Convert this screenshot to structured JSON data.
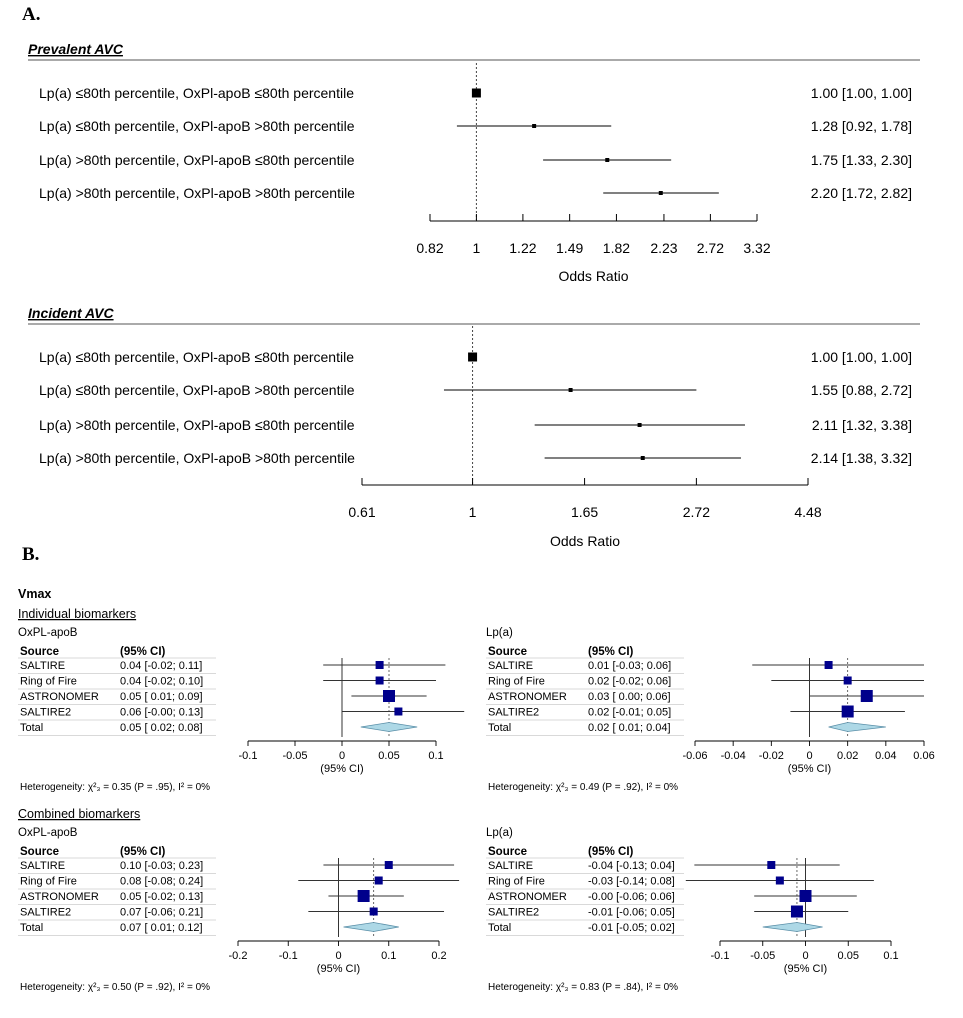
{
  "panel_a": {
    "label": "A.",
    "forest": [
      {
        "title": "Prevalent AVC",
        "xlabel": "Odds Ratio",
        "ticks": [
          "0.82",
          "1",
          "1.22",
          "1.49",
          "1.82",
          "2.23",
          "2.72",
          "3.32"
        ],
        "rows": [
          {
            "label": "Lp(a) ≤80th percentile, OxPl-apoB ≤80th percentile",
            "est": 1.0,
            "lo": 1.0,
            "hi": 1.0,
            "text": "1.00 [1.00, 1.00]"
          },
          {
            "label": "Lp(a) ≤80th percentile, OxPl-apoB >80th percentile",
            "est": 1.28,
            "lo": 0.92,
            "hi": 1.78,
            "text": "1.28 [0.92, 1.78]"
          },
          {
            "label": "Lp(a) >80th percentile, OxPl-apoB ≤80th percentile",
            "est": 1.75,
            "lo": 1.33,
            "hi": 2.3,
            "text": "1.75 [1.33, 2.30]"
          },
          {
            "label": "Lp(a) >80th percentile, OxPl-apoB >80th percentile",
            "est": 2.2,
            "lo": 1.72,
            "hi": 2.82,
            "text": "2.20 [1.72, 2.82]"
          }
        ]
      },
      {
        "title": "Incident AVC",
        "xlabel": "Odds Ratio",
        "ticks": [
          "0.61",
          "1",
          "1.65",
          "2.72",
          "4.48"
        ],
        "rows": [
          {
            "label": "Lp(a) ≤80th percentile, OxPl-apoB ≤80th percentile",
            "est": 1.0,
            "lo": 1.0,
            "hi": 1.0,
            "text": "1.00 [1.00, 1.00]"
          },
          {
            "label": "Lp(a) ≤80th percentile, OxPl-apoB >80th percentile",
            "est": 1.55,
            "lo": 0.88,
            "hi": 2.72,
            "text": "1.55 [0.88, 2.72]"
          },
          {
            "label": "Lp(a) >80th percentile, OxPl-apoB ≤80th percentile",
            "est": 2.11,
            "lo": 1.32,
            "hi": 3.38,
            "text": "2.11 [1.32, 3.38]"
          },
          {
            "label": "Lp(a) >80th percentile, OxPl-apoB >80th percentile",
            "est": 2.14,
            "lo": 1.38,
            "hi": 3.32,
            "text": "2.14 [1.38, 3.32]"
          }
        ]
      }
    ]
  },
  "panel_b": {
    "label": "B.",
    "heading": "Vmax",
    "sections": [
      {
        "title": "Individual biomarkers",
        "plots": [
          {
            "subtitle": "OxPL-apoB",
            "col_source": "Source",
            "col_ci": "(95% CI)",
            "ticks": [
              "-0.1",
              "-0.05",
              "0",
              "0.05",
              "0.1"
            ],
            "axis_label": "(95% CI)",
            "heterogeneity": "Heterogeneity: χ²₃ = 0.35 (P = .95), I² = 0%",
            "rows": [
              {
                "source": "SALTIRE",
                "ci": "0.04 [-0.02; 0.11]",
                "est": 0.04,
                "lo": -0.02,
                "hi": 0.11,
                "size": "small"
              },
              {
                "source": "Ring of Fire",
                "ci": "0.04 [-0.02; 0.10]",
                "est": 0.04,
                "lo": -0.02,
                "hi": 0.1,
                "size": "small"
              },
              {
                "source": "ASTRONOMER",
                "ci": "0.05 [ 0.01; 0.09]",
                "est": 0.05,
                "lo": 0.01,
                "hi": 0.09,
                "size": "large"
              },
              {
                "source": "SALTIRE2",
                "ci": "0.06 [-0.00; 0.13]",
                "est": 0.06,
                "lo": -0.0,
                "hi": 0.13,
                "size": "small"
              }
            ],
            "total": {
              "source": "Total",
              "ci": "0.05 [ 0.02; 0.08]",
              "est": 0.05,
              "lo": 0.02,
              "hi": 0.08
            }
          },
          {
            "subtitle": "Lp(a)",
            "col_source": "Source",
            "col_ci": "(95% CI)",
            "ticks": [
              "-0.06",
              "-0.04",
              "-0.02",
              "0",
              "0.02",
              "0.04",
              "0.06"
            ],
            "axis_label": "(95% CI)",
            "heterogeneity": "Heterogeneity: χ²₃ = 0.49 (P = .92), I² = 0%",
            "rows": [
              {
                "source": "SALTIRE",
                "ci": "0.01 [-0.03; 0.06]",
                "est": 0.01,
                "lo": -0.03,
                "hi": 0.06,
                "size": "small"
              },
              {
                "source": "Ring of Fire",
                "ci": "0.02 [-0.02; 0.06]",
                "est": 0.02,
                "lo": -0.02,
                "hi": 0.06,
                "size": "small"
              },
              {
                "source": "ASTRONOMER",
                "ci": "0.03 [ 0.00; 0.06]",
                "est": 0.03,
                "lo": 0.0,
                "hi": 0.06,
                "size": "large"
              },
              {
                "source": "SALTIRE2",
                "ci": "0.02 [-0.01; 0.05]",
                "est": 0.02,
                "lo": -0.01,
                "hi": 0.05,
                "size": "large"
              }
            ],
            "total": {
              "source": "Total",
              "ci": "0.02 [ 0.01; 0.04]",
              "est": 0.02,
              "lo": 0.01,
              "hi": 0.04
            }
          }
        ]
      },
      {
        "title": "Combined biomarkers",
        "plots": [
          {
            "subtitle": "OxPL-apoB",
            "col_source": "Source",
            "col_ci": "(95% CI)",
            "ticks": [
              "-0.2",
              "-0.1",
              "0",
              "0.1",
              "0.2"
            ],
            "axis_label": "(95% CI)",
            "heterogeneity": "Heterogeneity: χ²₃ = 0.50 (P = .92), I² = 0%",
            "rows": [
              {
                "source": "SALTIRE",
                "ci": "0.10 [-0.03; 0.23]",
                "est": 0.1,
                "lo": -0.03,
                "hi": 0.23,
                "size": "small"
              },
              {
                "source": "Ring of Fire",
                "ci": "0.08 [-0.08; 0.24]",
                "est": 0.08,
                "lo": -0.08,
                "hi": 0.24,
                "size": "small"
              },
              {
                "source": "ASTRONOMER",
                "ci": "0.05 [-0.02; 0.13]",
                "est": 0.05,
                "lo": -0.02,
                "hi": 0.13,
                "size": "large"
              },
              {
                "source": "SALTIRE2",
                "ci": "0.07 [-0.06; 0.21]",
                "est": 0.07,
                "lo": -0.06,
                "hi": 0.21,
                "size": "small"
              }
            ],
            "total": {
              "source": "Total",
              "ci": "0.07 [ 0.01; 0.12]",
              "est": 0.07,
              "lo": 0.01,
              "hi": 0.12
            }
          },
          {
            "subtitle": "Lp(a)",
            "col_source": "Source",
            "col_ci": "(95% CI)",
            "ticks": [
              "-0.1",
              "-0.05",
              "0",
              "0.05",
              "0.1"
            ],
            "axis_label": "(95% CI)",
            "heterogeneity": "Heterogeneity: χ²₃ = 0.83 (P = .84), I² = 0%",
            "rows": [
              {
                "source": "SALTIRE",
                "ci": "-0.04 [-0.13; 0.04]",
                "est": -0.04,
                "lo": -0.13,
                "hi": 0.04,
                "size": "small"
              },
              {
                "source": "Ring of Fire",
                "ci": "-0.03 [-0.14; 0.08]",
                "est": -0.03,
                "lo": -0.14,
                "hi": 0.08,
                "size": "small"
              },
              {
                "source": "ASTRONOMER",
                "ci": "-0.00 [-0.06; 0.06]",
                "est": -0.0,
                "lo": -0.06,
                "hi": 0.06,
                "size": "large"
              },
              {
                "source": "SALTIRE2",
                "ci": "-0.01 [-0.06; 0.05]",
                "est": -0.01,
                "lo": -0.06,
                "hi": 0.05,
                "size": "large"
              }
            ],
            "total": {
              "source": "Total",
              "ci": "-0.01 [-0.05; 0.02]",
              "est": -0.01,
              "lo": -0.05,
              "hi": 0.02
            }
          }
        ]
      }
    ]
  },
  "colors": {
    "marker_b": "#00008B",
    "diamond_b": "#ADD8E6",
    "ink": "#000000",
    "grid": "#cccccc"
  },
  "chart_data": [
    {
      "type": "forest",
      "title": "Prevalent AVC",
      "xlabel": "Odds Ratio",
      "scale": "log",
      "xlim": [
        0.82,
        3.32
      ],
      "reference_line": 1,
      "categories": [
        "Lp(a) ≤80th percentile, OxPl-apoB ≤80th percentile",
        "Lp(a) ≤80th percentile, OxPl-apoB >80th percentile",
        "Lp(a) >80th percentile, OxPl-apoB ≤80th percentile",
        "Lp(a) >80th percentile, OxPl-apoB >80th percentile"
      ],
      "estimates": [
        1.0,
        1.28,
        1.75,
        2.2
      ],
      "ci_lower": [
        1.0,
        0.92,
        1.33,
        1.72
      ],
      "ci_upper": [
        1.0,
        1.78,
        2.3,
        2.82
      ]
    },
    {
      "type": "forest",
      "title": "Incident AVC",
      "xlabel": "Odds Ratio",
      "scale": "log",
      "xlim": [
        0.61,
        4.48
      ],
      "reference_line": 1,
      "categories": [
        "Lp(a) ≤80th percentile, OxPl-apoB ≤80th percentile",
        "Lp(a) ≤80th percentile, OxPl-apoB >80th percentile",
        "Lp(a) >80th percentile, OxPl-apoB ≤80th percentile",
        "Lp(a) >80th percentile, OxPl-apoB >80th percentile"
      ],
      "estimates": [
        1.0,
        1.55,
        2.11,
        2.14
      ],
      "ci_lower": [
        1.0,
        0.88,
        1.32,
        1.38
      ],
      "ci_upper": [
        1.0,
        2.72,
        3.38,
        3.32
      ]
    },
    {
      "type": "forest",
      "title": "OxPL-apoB",
      "section": "Individual biomarkers",
      "xlim": [
        -0.1,
        0.1
      ],
      "categories": [
        "SALTIRE",
        "Ring of Fire",
        "ASTRONOMER",
        "SALTIRE2",
        "Total"
      ],
      "estimates": [
        0.04,
        0.04,
        0.05,
        0.06,
        0.05
      ],
      "ci_lower": [
        -0.02,
        -0.02,
        0.01,
        -0.0,
        0.02
      ],
      "ci_upper": [
        0.11,
        0.1,
        0.09,
        0.13,
        0.08
      ]
    },
    {
      "type": "forest",
      "title": "Lp(a)",
      "section": "Individual biomarkers",
      "xlim": [
        -0.06,
        0.06
      ],
      "categories": [
        "SALTIRE",
        "Ring of Fire",
        "ASTRONOMER",
        "SALTIRE2",
        "Total"
      ],
      "estimates": [
        0.01,
        0.02,
        0.03,
        0.02,
        0.02
      ],
      "ci_lower": [
        -0.03,
        -0.02,
        0.0,
        -0.01,
        0.01
      ],
      "ci_upper": [
        0.06,
        0.06,
        0.06,
        0.05,
        0.04
      ]
    },
    {
      "type": "forest",
      "title": "OxPL-apoB",
      "section": "Combined biomarkers",
      "xlim": [
        -0.2,
        0.2
      ],
      "categories": [
        "SALTIRE",
        "Ring of Fire",
        "ASTRONOMER",
        "SALTIRE2",
        "Total"
      ],
      "estimates": [
        0.1,
        0.08,
        0.05,
        0.07,
        0.07
      ],
      "ci_lower": [
        -0.03,
        -0.08,
        -0.02,
        -0.06,
        0.01
      ],
      "ci_upper": [
        0.23,
        0.24,
        0.13,
        0.21,
        0.12
      ]
    },
    {
      "type": "forest",
      "title": "Lp(a)",
      "section": "Combined biomarkers",
      "xlim": [
        -0.1,
        0.1
      ],
      "categories": [
        "SALTIRE",
        "Ring of Fire",
        "ASTRONOMER",
        "SALTIRE2",
        "Total"
      ],
      "estimates": [
        -0.04,
        -0.03,
        -0.0,
        -0.01,
        -0.01
      ],
      "ci_lower": [
        -0.13,
        -0.14,
        -0.06,
        -0.06,
        -0.05
      ],
      "ci_upper": [
        0.04,
        0.08,
        0.06,
        0.05,
        0.02
      ]
    }
  ]
}
